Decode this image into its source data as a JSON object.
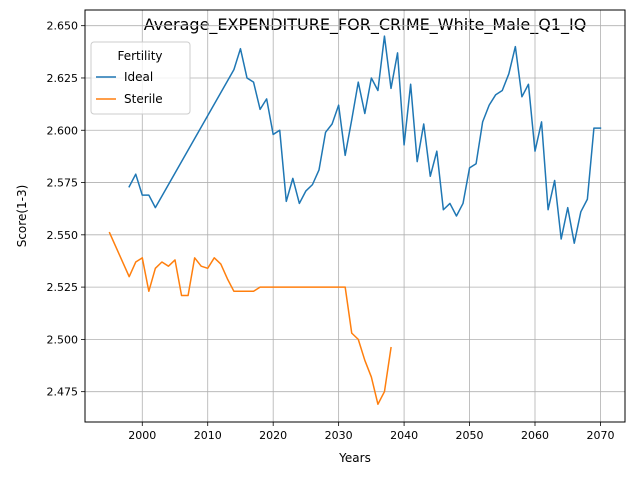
{
  "chart_data": {
    "type": "line",
    "title": "Average_EXPENDITURE_FOR_CRIME_White_Male_Q1_IQ",
    "xlabel": "Years",
    "ylabel": "Score(1-3)",
    "xlim": [
      1991.25,
      2073.75
    ],
    "ylim": [
      2.4605,
      2.6575
    ],
    "xticks": [
      2000,
      2010,
      2020,
      2030,
      2040,
      2050,
      2060,
      2070
    ],
    "yticks": [
      2.475,
      2.5,
      2.525,
      2.55,
      2.575,
      2.6,
      2.625,
      2.65
    ],
    "ytick_labels": [
      "2.475",
      "2.500",
      "2.525",
      "2.550",
      "2.575",
      "2.600",
      "2.625",
      "2.650"
    ],
    "grid": true,
    "legend": {
      "title": "Fertility",
      "placement": "upper-left"
    },
    "series": [
      {
        "name": "Ideal",
        "color": "#1f77b4",
        "x": [
          1998,
          1999,
          2000,
          2001,
          2002,
          2014,
          2015,
          2016,
          2017,
          2018,
          2019,
          2020,
          2021,
          2022,
          2023,
          2024,
          2025,
          2026,
          2027,
          2028,
          2029,
          2030,
          2031,
          2032,
          2033,
          2034,
          2035,
          2036,
          2037,
          2038,
          2039,
          2040,
          2041,
          2042,
          2043,
          2044,
          2045,
          2046,
          2047,
          2048,
          2049,
          2050,
          2051,
          2052,
          2053,
          2054,
          2055,
          2056,
          2057,
          2058,
          2059,
          2060,
          2061,
          2062,
          2063,
          2064,
          2065,
          2066,
          2067,
          2068,
          2069,
          2070
        ],
        "y": [
          2.573,
          2.579,
          2.569,
          2.569,
          2.563,
          2.629,
          2.639,
          2.625,
          2.623,
          2.61,
          2.615,
          2.598,
          2.6,
          2.566,
          2.577,
          2.565,
          2.571,
          2.574,
          2.581,
          2.599,
          2.603,
          2.612,
          2.588,
          2.605,
          2.623,
          2.608,
          2.625,
          2.619,
          2.645,
          2.62,
          2.637,
          2.593,
          2.622,
          2.585,
          2.603,
          2.578,
          2.59,
          2.562,
          2.565,
          2.559,
          2.565,
          2.582,
          2.584,
          2.604,
          2.612,
          2.617,
          2.619,
          2.627,
          2.64,
          2.616,
          2.622,
          2.59,
          2.604,
          2.562,
          2.576,
          2.548,
          2.563,
          2.546,
          2.561,
          2.567,
          2.601,
          2.601
        ]
      },
      {
        "name": "Sterile",
        "color": "#ff7f0e",
        "x": [
          1995,
          1998,
          1999,
          2000,
          2001,
          2002,
          2003,
          2004,
          2005,
          2006,
          2007,
          2008,
          2009,
          2010,
          2011,
          2012,
          2013,
          2014,
          2015,
          2016,
          2017,
          2018,
          2019,
          2020,
          2021,
          2022,
          2023,
          2024,
          2025,
          2026,
          2027,
          2028,
          2029,
          2030,
          2031,
          2032,
          2033,
          2034,
          2035,
          2036,
          2037,
          2038
        ],
        "y": [
          2.551,
          2.53,
          2.537,
          2.539,
          2.523,
          2.534,
          2.537,
          2.535,
          2.538,
          2.521,
          2.521,
          2.539,
          2.535,
          2.534,
          2.539,
          2.536,
          2.529,
          2.523,
          2.523,
          2.523,
          2.523,
          2.525,
          2.525,
          2.525,
          2.525,
          2.525,
          2.525,
          2.525,
          2.525,
          2.525,
          2.525,
          2.525,
          2.525,
          2.525,
          2.525,
          2.503,
          2.5,
          2.49,
          2.482,
          2.469,
          2.475,
          2.496
        ]
      }
    ]
  }
}
